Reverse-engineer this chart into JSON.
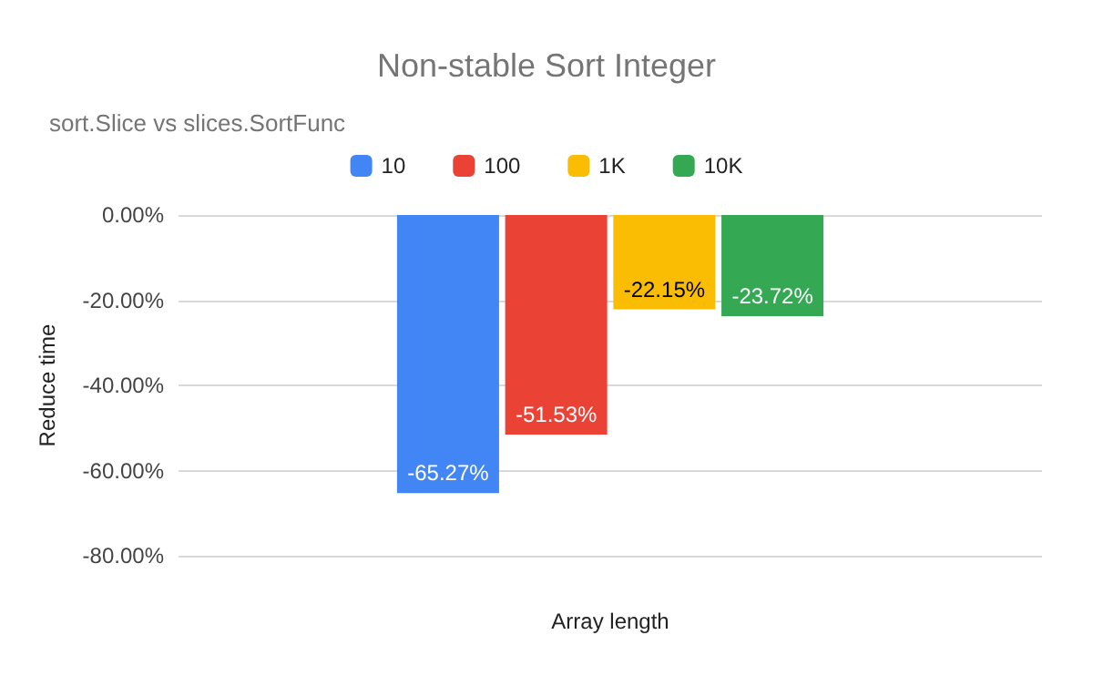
{
  "chart_data": {
    "type": "bar",
    "title": "Non-stable Sort Integer",
    "subtitle": "sort.Slice vs slices.SortFunc",
    "xlabel": "Array length",
    "ylabel": "Reduce time",
    "categories": [
      null
    ],
    "series": [
      {
        "name": "10",
        "color": "#4285f4",
        "values": [
          -65.27
        ],
        "value_labels": [
          "-65.27%"
        ]
      },
      {
        "name": "100",
        "color": "#ea4335",
        "values": [
          -51.53
        ],
        "value_labels": [
          "-51.53%"
        ]
      },
      {
        "name": "1K",
        "color": "#fbbc04",
        "values": [
          -22.15
        ],
        "value_labels": [
          "-22.15%"
        ]
      },
      {
        "name": "10K",
        "color": "#34a853",
        "values": [
          -23.72
        ],
        "value_labels": [
          "-23.72%"
        ]
      }
    ],
    "ylim": [
      -80,
      0
    ],
    "yticks": [
      {
        "value": 0,
        "label": "0.00%"
      },
      {
        "value": -20,
        "label": "-20.00%"
      },
      {
        "value": -40,
        "label": "-40.00%"
      },
      {
        "value": -60,
        "label": "-60.00%"
      },
      {
        "value": -80,
        "label": "-80.00%"
      }
    ],
    "grid": "y",
    "legend": "top"
  }
}
